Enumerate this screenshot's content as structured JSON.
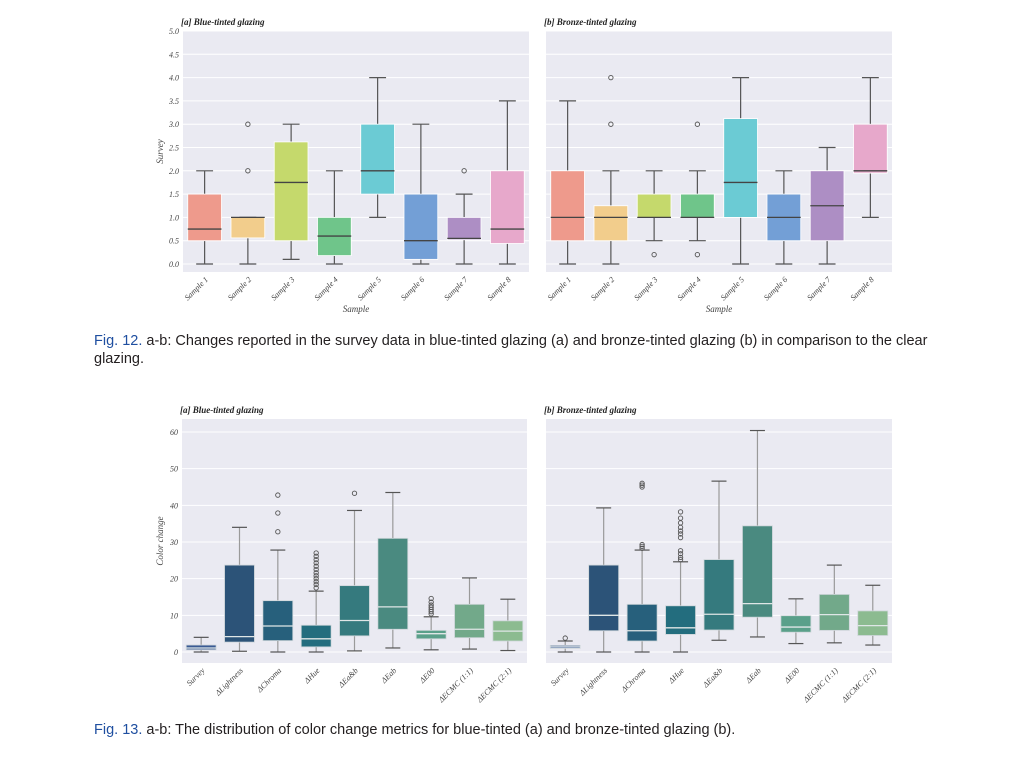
{
  "figures": {
    "fig12": {
      "caption_ref": "Fig. 12.",
      "caption_text": " a-b: Changes reported in the survey data in blue-tinted glazing (a) and bronze-tinted glazing (b) in comparison to the clear glazing."
    },
    "fig13": {
      "caption_ref": "Fig. 13.",
      "caption_text": " a-b: The distribution of color change metrics for blue-tinted (a) and bronze-tinted glazing (b)."
    }
  },
  "chart_data": [
    {
      "id": "fig12a",
      "type": "box",
      "title": "[a] Blue-tinted glazing",
      "xlabel": "Sample",
      "ylabel": "Survey",
      "ylim": [
        -0.2,
        5.0
      ],
      "yticks": [
        0.0,
        0.5,
        1.0,
        1.5,
        2.0,
        2.5,
        3.0,
        3.5,
        4.0,
        4.5,
        5.0
      ],
      "ytick_labels": [
        "0.0",
        "0.5",
        "1.0",
        "1.5",
        "2.0",
        "2.5",
        "3.0",
        "3.5",
        "4.0",
        "4.5",
        "5.0"
      ],
      "grid": true,
      "categories": [
        "Sample 1",
        "Sample 2",
        "Sample 3",
        "Sample 4",
        "Sample 5",
        "Sample 6",
        "Sample 7",
        "Sample 8"
      ],
      "colors": [
        "#ee9a8c",
        "#f2cd8c",
        "#c5d96c",
        "#6fc58a",
        "#6bcbd4",
        "#739fd6",
        "#ad8ec4",
        "#e7a8cb"
      ],
      "boxes": [
        {
          "whislo": 0.0,
          "q1": 0.5,
          "med": 0.75,
          "q3": 1.5,
          "whishi": 2.0,
          "fliers": []
        },
        {
          "whislo": 0.0,
          "q1": 0.56,
          "med": 1.0,
          "q3": 1.0,
          "whishi": 1.0,
          "fliers": [
            2.0,
            3.0
          ]
        },
        {
          "whislo": 0.1,
          "q1": 0.5,
          "med": 1.75,
          "q3": 2.62,
          "whishi": 3.0,
          "fliers": []
        },
        {
          "whislo": 0.0,
          "q1": 0.18,
          "med": 0.6,
          "q3": 1.0,
          "whishi": 2.0,
          "fliers": []
        },
        {
          "whislo": 1.0,
          "q1": 1.5,
          "med": 2.0,
          "q3": 3.0,
          "whishi": 4.0,
          "fliers": []
        },
        {
          "whislo": 0.0,
          "q1": 0.1,
          "med": 0.5,
          "q3": 1.5,
          "whishi": 3.0,
          "fliers": []
        },
        {
          "whislo": 0.0,
          "q1": 0.52,
          "med": 0.55,
          "q3": 1.0,
          "whishi": 1.5,
          "fliers": [
            2.0
          ]
        },
        {
          "whislo": 0.0,
          "q1": 0.44,
          "med": 0.75,
          "q3": 2.0,
          "whishi": 3.5,
          "fliers": []
        }
      ]
    },
    {
      "id": "fig12b",
      "type": "box",
      "title": "[b] Bronze-tinted glazing",
      "xlabel": "Sample",
      "ylabel": "",
      "ylim": [
        -0.2,
        5.0
      ],
      "yticks": [
        0.0,
        0.5,
        1.0,
        1.5,
        2.0,
        2.5,
        3.0,
        3.5,
        4.0,
        4.5,
        5.0
      ],
      "ytick_labels": [],
      "grid": true,
      "categories": [
        "Sample 1",
        "Sample 2",
        "Sample 3",
        "Sample 4",
        "Sample 5",
        "Sample 6",
        "Sample 7",
        "Sample 8"
      ],
      "colors": [
        "#ee9a8c",
        "#f2cd8c",
        "#c5d96c",
        "#6fc58a",
        "#6bcbd4",
        "#739fd6",
        "#ad8ec4",
        "#e7a8cb"
      ],
      "boxes": [
        {
          "whislo": 0.0,
          "q1": 0.5,
          "med": 1.0,
          "q3": 2.0,
          "whishi": 3.5,
          "fliers": []
        },
        {
          "whislo": 0.0,
          "q1": 0.5,
          "med": 1.0,
          "q3": 1.25,
          "whishi": 2.0,
          "fliers": [
            3.0,
            4.0
          ]
        },
        {
          "whislo": 0.5,
          "q1": 1.0,
          "med": 1.0,
          "q3": 1.5,
          "whishi": 2.0,
          "fliers": [
            0.2
          ]
        },
        {
          "whislo": 0.5,
          "q1": 1.0,
          "med": 1.0,
          "q3": 1.5,
          "whishi": 2.0,
          "fliers": [
            0.2,
            3.0
          ]
        },
        {
          "whislo": 0.0,
          "q1": 1.0,
          "med": 1.75,
          "q3": 3.12,
          "whishi": 4.0,
          "fliers": []
        },
        {
          "whislo": 0.0,
          "q1": 0.5,
          "med": 1.0,
          "q3": 1.5,
          "whishi": 2.0,
          "fliers": []
        },
        {
          "whislo": 0.0,
          "q1": 0.5,
          "med": 1.25,
          "q3": 2.0,
          "whishi": 2.5,
          "fliers": []
        },
        {
          "whislo": 1.0,
          "q1": 1.95,
          "med": 2.0,
          "q3": 3.0,
          "whishi": 4.0,
          "fliers": []
        }
      ]
    },
    {
      "id": "fig13a",
      "type": "box",
      "title": "[a] Blue-tinted glazing",
      "xlabel": "",
      "ylabel": "Color change",
      "ylim": [
        -3,
        63
      ],
      "yticks": [
        0,
        10,
        20,
        30,
        40,
        50,
        60
      ],
      "ytick_labels": [
        "0",
        "10",
        "20",
        "30",
        "40",
        "50",
        "60"
      ],
      "grid": true,
      "categories": [
        "Survey",
        "ΔLightness",
        "ΔChroma",
        "ΔHue",
        "ΔEa&b",
        "ΔEab",
        "ΔE00",
        "ΔECMC (1:1)",
        "ΔECMC (2:1)"
      ],
      "colors": [
        "#3a5a94",
        "#2c5378",
        "#27607c",
        "#236d7e",
        "#357a7e",
        "#4a8a80",
        "#5aa08a",
        "#72a98a",
        "#8cbb90"
      ],
      "boxes": [
        {
          "whislo": 0.0,
          "q1": 0.6,
          "med": 1.1,
          "q3": 1.9,
          "whishi": 4.0,
          "fliers": []
        },
        {
          "whislo": 0.2,
          "q1": 2.7,
          "med": 4.2,
          "q3": 23.7,
          "whishi": 34.0,
          "fliers": []
        },
        {
          "whislo": 0.0,
          "q1": 3.1,
          "med": 7.1,
          "q3": 14.0,
          "whishi": 27.8,
          "fliers": [
            32.8,
            37.9,
            42.8
          ]
        },
        {
          "whislo": 0.0,
          "q1": 1.4,
          "med": 3.6,
          "q3": 7.3,
          "whishi": 16.6,
          "fliers": [
            17.5,
            18.4,
            19.2,
            20.0,
            20.8,
            21.6,
            22.5,
            23.4,
            24.3,
            25.2,
            26.1,
            27.0
          ]
        },
        {
          "whislo": 0.3,
          "q1": 4.4,
          "med": 8.6,
          "q3": 18.1,
          "whishi": 38.6,
          "fliers": [
            43.3
          ]
        },
        {
          "whislo": 1.1,
          "q1": 6.2,
          "med": 12.3,
          "q3": 31.0,
          "whishi": 43.5,
          "fliers": []
        },
        {
          "whislo": 0.6,
          "q1": 3.6,
          "med": 5.0,
          "q3": 5.9,
          "whishi": 9.6,
          "fliers": [
            10.4,
            11.0,
            11.6,
            12.2,
            12.8,
            13.6,
            14.6
          ]
        },
        {
          "whislo": 0.8,
          "q1": 3.9,
          "med": 6.2,
          "q3": 13.0,
          "whishi": 20.2,
          "fliers": []
        },
        {
          "whislo": 0.4,
          "q1": 3.0,
          "med": 5.7,
          "q3": 8.5,
          "whishi": 14.4,
          "fliers": []
        }
      ]
    },
    {
      "id": "fig13b",
      "type": "box",
      "title": "[b] Bronze-tinted glazing",
      "xlabel": "",
      "ylabel": "",
      "ylim": [
        -3,
        63
      ],
      "yticks": [
        0,
        10,
        20,
        30,
        40,
        50,
        60
      ],
      "ytick_labels": [],
      "grid": true,
      "categories": [
        "Survey",
        "ΔLightness",
        "ΔChroma",
        "ΔHue",
        "ΔEa&b",
        "ΔEab",
        "ΔE00",
        "ΔECMC (1:1)",
        "ΔECMC (2:1)"
      ],
      "colors": [
        "#3a5a94",
        "#2c5378",
        "#27607c",
        "#236d7e",
        "#357a7e",
        "#4a8a80",
        "#5aa08a",
        "#72a98a",
        "#8cbb90"
      ],
      "boxes": [
        {
          "whislo": 0.0,
          "q1": 1.0,
          "med": 1.4,
          "q3": 1.8,
          "whishi": 3.0,
          "fliers": [
            3.8
          ]
        },
        {
          "whislo": 0.0,
          "q1": 5.8,
          "med": 10.0,
          "q3": 23.7,
          "whishi": 39.3,
          "fliers": []
        },
        {
          "whislo": 0.0,
          "q1": 3.0,
          "med": 5.8,
          "q3": 13.0,
          "whishi": 27.8,
          "fliers": [
            28.3,
            28.8,
            29.3,
            45.0,
            45.5,
            46.0
          ]
        },
        {
          "whislo": 0.0,
          "q1": 4.8,
          "med": 6.6,
          "q3": 12.6,
          "whishi": 24.6,
          "fliers": [
            25.2,
            25.8,
            26.8,
            27.6,
            31.2,
            32.2,
            33.0,
            34.0,
            35.2,
            36.5,
            38.2
          ]
        },
        {
          "whislo": 3.2,
          "q1": 6.0,
          "med": 10.3,
          "q3": 25.2,
          "whishi": 46.6,
          "fliers": []
        },
        {
          "whislo": 4.1,
          "q1": 9.5,
          "med": 13.2,
          "q3": 34.4,
          "whishi": 60.4,
          "fliers": []
        },
        {
          "whislo": 2.3,
          "q1": 5.4,
          "med": 6.8,
          "q3": 9.9,
          "whishi": 14.5,
          "fliers": []
        },
        {
          "whislo": 2.5,
          "q1": 5.9,
          "med": 10.2,
          "q3": 15.7,
          "whishi": 23.7,
          "fliers": []
        },
        {
          "whislo": 1.9,
          "q1": 4.5,
          "med": 7.2,
          "q3": 11.2,
          "whishi": 18.2,
          "fliers": []
        }
      ]
    }
  ]
}
